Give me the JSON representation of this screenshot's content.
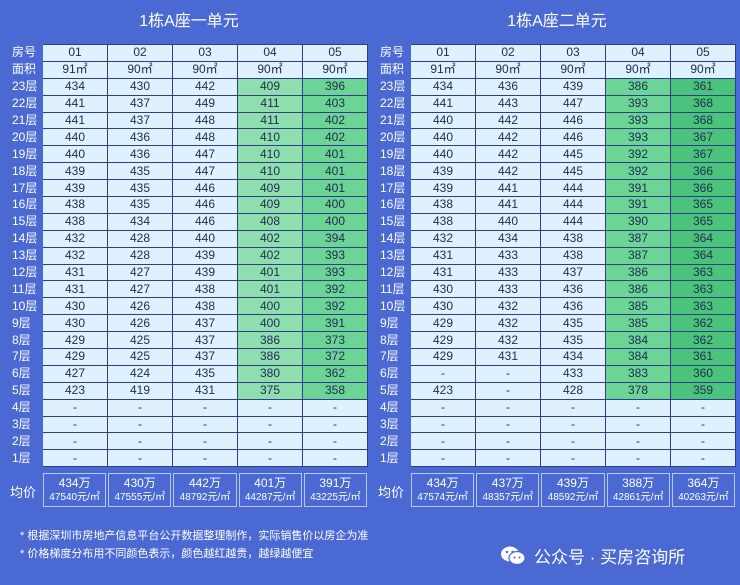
{
  "floors": [
    "23层",
    "22层",
    "21层",
    "20层",
    "19层",
    "18层",
    "17层",
    "16层",
    "15层",
    "14层",
    "13层",
    "12层",
    "11层",
    "10层",
    "9层",
    "8层",
    "7层",
    "6层",
    "5层",
    "4层",
    "3层",
    "2层",
    "1层"
  ],
  "row_labels": {
    "room": "房号",
    "area": "面积",
    "avg": "均价"
  },
  "panels": [
    {
      "title": "1栋A座一单元",
      "rooms": [
        "01",
        "02",
        "03",
        "04",
        "05"
      ],
      "areas": [
        "91㎡",
        "90㎡",
        "90㎡",
        "90㎡",
        "90㎡"
      ],
      "rows": [
        [
          "434",
          "430",
          "442",
          "409",
          "396"
        ],
        [
          "441",
          "437",
          "449",
          "411",
          "403"
        ],
        [
          "441",
          "437",
          "448",
          "411",
          "402"
        ],
        [
          "440",
          "436",
          "448",
          "410",
          "402"
        ],
        [
          "440",
          "436",
          "447",
          "410",
          "401"
        ],
        [
          "439",
          "435",
          "447",
          "410",
          "401"
        ],
        [
          "439",
          "435",
          "446",
          "409",
          "401"
        ],
        [
          "438",
          "435",
          "446",
          "409",
          "400"
        ],
        [
          "438",
          "434",
          "446",
          "408",
          "400"
        ],
        [
          "432",
          "428",
          "440",
          "402",
          "394"
        ],
        [
          "432",
          "428",
          "439",
          "402",
          "393"
        ],
        [
          "431",
          "427",
          "439",
          "401",
          "393"
        ],
        [
          "431",
          "427",
          "438",
          "401",
          "392"
        ],
        [
          "430",
          "426",
          "438",
          "400",
          "392"
        ],
        [
          "430",
          "426",
          "437",
          "400",
          "391"
        ],
        [
          "429",
          "425",
          "437",
          "386",
          "373"
        ],
        [
          "429",
          "425",
          "437",
          "386",
          "372"
        ],
        [
          "427",
          "424",
          "435",
          "380",
          "362"
        ],
        [
          "423",
          "419",
          "431",
          "375",
          "358"
        ],
        [
          "-",
          "-",
          "-",
          "-",
          "-"
        ],
        [
          "-",
          "-",
          "-",
          "-",
          "-"
        ],
        [
          "-",
          "-",
          "-",
          "-",
          "-"
        ],
        [
          "-",
          "-",
          "-",
          "-",
          "-"
        ]
      ],
      "avg_total": [
        "434万",
        "430万",
        "442万",
        "401万",
        "391万"
      ],
      "avg_unit": [
        "47540元/㎡",
        "47555元/㎡",
        "48792元/㎡",
        "44287元/㎡",
        "43225元/㎡"
      ]
    },
    {
      "title": "1栋A座二单元",
      "rooms": [
        "01",
        "02",
        "03",
        "04",
        "05"
      ],
      "areas": [
        "91㎡",
        "90㎡",
        "90㎡",
        "90㎡",
        "90㎡"
      ],
      "rows": [
        [
          "434",
          "436",
          "439",
          "386",
          "361"
        ],
        [
          "441",
          "443",
          "447",
          "393",
          "368"
        ],
        [
          "440",
          "442",
          "446",
          "393",
          "368"
        ],
        [
          "440",
          "442",
          "446",
          "393",
          "367"
        ],
        [
          "440",
          "442",
          "445",
          "392",
          "367"
        ],
        [
          "439",
          "442",
          "445",
          "392",
          "366"
        ],
        [
          "439",
          "441",
          "444",
          "391",
          "366"
        ],
        [
          "438",
          "441",
          "444",
          "391",
          "365"
        ],
        [
          "438",
          "440",
          "444",
          "390",
          "365"
        ],
        [
          "432",
          "434",
          "438",
          "387",
          "364"
        ],
        [
          "431",
          "433",
          "438",
          "387",
          "364"
        ],
        [
          "431",
          "433",
          "437",
          "386",
          "363"
        ],
        [
          "430",
          "433",
          "436",
          "386",
          "363"
        ],
        [
          "430",
          "432",
          "436",
          "385",
          "363"
        ],
        [
          "429",
          "432",
          "435",
          "385",
          "362"
        ],
        [
          "429",
          "432",
          "435",
          "384",
          "362"
        ],
        [
          "429",
          "431",
          "434",
          "384",
          "361"
        ],
        [
          "-",
          "-",
          "433",
          "383",
          "360"
        ],
        [
          "423",
          "-",
          "428",
          "378",
          "359"
        ],
        [
          "-",
          "-",
          "-",
          "-",
          "-"
        ],
        [
          "-",
          "-",
          "-",
          "-",
          "-"
        ],
        [
          "-",
          "-",
          "-",
          "-",
          "-"
        ],
        [
          "-",
          "-",
          "-",
          "-",
          "-"
        ]
      ],
      "avg_total": [
        "434万",
        "437万",
        "439万",
        "388万",
        "364万"
      ],
      "avg_unit": [
        "47574元/㎡",
        "48357元/㎡",
        "48592元/㎡",
        "42861元/㎡",
        "40263元/㎡"
      ]
    }
  ],
  "notes": [
    "* 根据深圳市房地产信息平台公开数据整理制作，实际销售价以房企为准",
    "* 价格梯度分布用不同颜色表示，颜色越红越贵，越绿越便宜"
  ],
  "brand": {
    "text": "公众号 · 买房咨询所",
    "icon": "wechat-icon"
  },
  "colors": {
    "background": "#4a69d2",
    "cell": "#dff1ff",
    "green_light": "#c4ecd3",
    "green_mid": "#8fdeae",
    "green_strong": "#4cc37a",
    "text": "#1d2c52"
  }
}
